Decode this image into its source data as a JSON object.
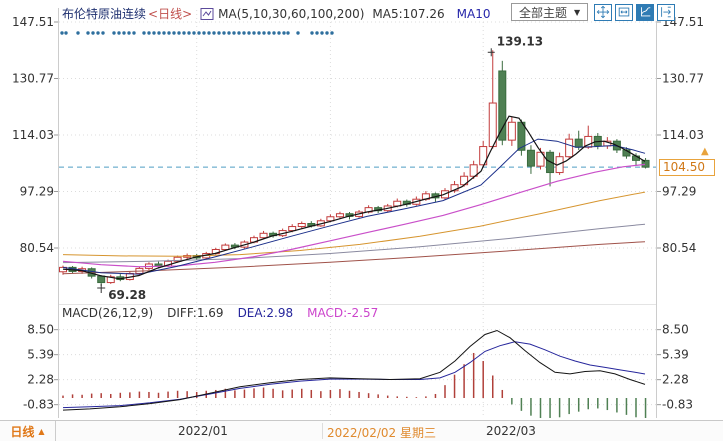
{
  "header": {
    "symbol": "布伦特原油连续",
    "period_tag": "<日线>",
    "indicator_label": "MA(5,10,30,60,100,200)",
    "ma5_label": "MA5:107.26",
    "ma10_label": "MA10",
    "theme_dropdown": "全部主题",
    "dropdown_arrow": "▼"
  },
  "toolbar": {
    "icons": [
      "crosshair-move-icon",
      "region-zoom-icon",
      "axis-scale-icon",
      "pan-right-icon"
    ],
    "active_icon": "axis-scale-icon"
  },
  "macd": {
    "label": "MACD(26,12,9)",
    "diff_label": "DIFF:1.69",
    "dea_label": "DEA:2.98",
    "macd_label": "MACD:-2.57"
  },
  "price_tags": {
    "high": "139.13",
    "low": "69.28",
    "last": "104.50",
    "arrow": "▲"
  },
  "axes": {
    "main_ticks": [
      "147.51",
      "130.77",
      "114.03",
      "97.29",
      "80.54"
    ],
    "macd_ticks": [
      "8.50",
      "5.39",
      "2.28",
      "-0.83"
    ]
  },
  "bottom_bar": {
    "period": "日线",
    "arrow": "▲",
    "dates": [
      "2022/01",
      "2022/02/02 星期三",
      "2022/03"
    ]
  },
  "colors": {
    "up": "#c23b3b",
    "down_fill": "#4f8053",
    "down_stroke": "#3a6b3e",
    "dashed_line": "#4f9ec4",
    "dot": "#2e6f9e",
    "grid": "#dcdcdc",
    "border": "#cccccc",
    "axis_text": "#333333",
    "toolbar_blue": "#2e7bb4",
    "high_label": "#c23b3b",
    "low_label": "#3c8c40",
    "tag_border": "#e8a33d",
    "tag_text": "#d07818",
    "diff_line": "#141414",
    "dea_line": "#26269c",
    "bar_pos": "#b0403a",
    "bar_neg": "#4f8053"
  },
  "chart_data": {
    "type": "candlestick+macd",
    "title": "布伦特原油连续 日线",
    "main": {
      "ylim": [
        63,
        152
      ],
      "yticks": [
        147.51,
        130.77,
        114.03,
        97.29,
        80.54
      ],
      "last_price": 104.5,
      "high_label": {
        "value": 139.13,
        "i": 45
      },
      "low_label": {
        "value": 69.28,
        "i": 4
      },
      "x_gridline_indices": [
        14,
        28,
        44
      ],
      "candles": [
        [
          73.5,
          75.3,
          72.6,
          74.8
        ],
        [
          74.8,
          75.2,
          73.0,
          73.6
        ],
        [
          73.6,
          75.0,
          72.9,
          74.4
        ],
        [
          74.4,
          74.8,
          71.5,
          72.2
        ],
        [
          72.2,
          72.5,
          69.28,
          70.3
        ],
        [
          70.3,
          72.6,
          69.9,
          72.0
        ],
        [
          72.0,
          72.8,
          70.7,
          71.2
        ],
        [
          71.2,
          73.5,
          70.9,
          73.0
        ],
        [
          73.0,
          75.0,
          72.6,
          74.5
        ],
        [
          74.5,
          76.3,
          74.0,
          75.8
        ],
        [
          75.8,
          76.5,
          74.7,
          75.2
        ],
        [
          75.2,
          77.1,
          74.9,
          76.6
        ],
        [
          76.6,
          78.3,
          76.2,
          77.8
        ],
        [
          77.8,
          78.9,
          77.2,
          78.3
        ],
        [
          78.3,
          78.8,
          77.0,
          77.6
        ],
        [
          77.6,
          79.4,
          77.2,
          78.9
        ],
        [
          78.9,
          80.6,
          78.5,
          80.1
        ],
        [
          80.1,
          81.9,
          79.8,
          81.4
        ],
        [
          81.4,
          82.0,
          80.2,
          80.8
        ],
        [
          80.8,
          82.8,
          80.4,
          82.3
        ],
        [
          82.3,
          84.2,
          81.9,
          83.6
        ],
        [
          83.6,
          85.6,
          83.2,
          84.9
        ],
        [
          84.9,
          85.4,
          83.6,
          84.2
        ],
        [
          84.2,
          86.3,
          83.8,
          85.7
        ],
        [
          85.7,
          87.6,
          85.2,
          86.9
        ],
        [
          86.9,
          88.4,
          86.4,
          87.8
        ],
        [
          87.8,
          88.5,
          86.6,
          87.1
        ],
        [
          87.1,
          89.2,
          86.8,
          88.6
        ],
        [
          88.6,
          90.5,
          88.2,
          89.8
        ],
        [
          89.8,
          91.3,
          89.3,
          90.7
        ],
        [
          90.7,
          91.2,
          89.0,
          89.9
        ],
        [
          89.9,
          91.8,
          89.5,
          91.2
        ],
        [
          91.2,
          93.2,
          90.8,
          92.5
        ],
        [
          92.5,
          93.0,
          90.9,
          91.6
        ],
        [
          91.6,
          93.6,
          91.1,
          93.0
        ],
        [
          93.0,
          95.2,
          92.6,
          94.4
        ],
        [
          94.4,
          94.9,
          92.8,
          93.5
        ],
        [
          93.5,
          95.8,
          93.1,
          95.0
        ],
        [
          95.0,
          97.4,
          94.5,
          96.6
        ],
        [
          96.6,
          97.0,
          94.2,
          95.4
        ],
        [
          95.4,
          98.3,
          94.9,
          97.5
        ],
        [
          97.5,
          100.4,
          96.9,
          99.3
        ],
        [
          99.3,
          103.0,
          98.7,
          101.8
        ],
        [
          101.8,
          106.4,
          101.0,
          105.2
        ],
        [
          105.2,
          112.3,
          104.4,
          110.6
        ],
        [
          110.6,
          139.13,
          110.0,
          123.5
        ],
        [
          133.0,
          136.0,
          111.0,
          112.5
        ],
        [
          112.5,
          119.5,
          110.8,
          117.8
        ],
        [
          117.8,
          118.6,
          107.9,
          109.5
        ],
        [
          109.5,
          111.0,
          102.5,
          104.8
        ],
        [
          104.8,
          110.2,
          103.8,
          108.9
        ],
        [
          108.9,
          109.6,
          98.8,
          102.9
        ],
        [
          102.9,
          108.8,
          102.2,
          107.6
        ],
        [
          107.6,
          114.4,
          107.0,
          112.8
        ],
        [
          112.8,
          115.3,
          109.6,
          110.4
        ],
        [
          110.4,
          116.8,
          109.9,
          113.6
        ],
        [
          113.6,
          114.6,
          109.8,
          110.8
        ],
        [
          110.8,
          113.4,
          109.9,
          112.2
        ],
        [
          112.2,
          112.8,
          108.7,
          109.6
        ],
        [
          109.6,
          110.4,
          107.0,
          107.8
        ],
        [
          107.8,
          108.6,
          104.9,
          106.5
        ],
        [
          106.5,
          107.2,
          104.1,
          104.5
        ]
      ],
      "ma_lines": [
        {
          "name": "MA200",
          "color": "#a0524a",
          "width": 1,
          "points": [
            [
              63,
              72.9
            ],
            [
              150,
              73.8
            ],
            [
              240,
              74.9
            ],
            [
              330,
              76.3
            ],
            [
              420,
              77.9
            ],
            [
              510,
              79.7
            ],
            [
              600,
              81.6
            ],
            [
              645,
              82.4
            ]
          ]
        },
        {
          "name": "MA100",
          "color": "#8a8aa0",
          "width": 1,
          "points": [
            [
              63,
              76.2
            ],
            [
              150,
              76.6
            ],
            [
              240,
              77.4
            ],
            [
              330,
              78.9
            ],
            [
              420,
              80.9
            ],
            [
              510,
              83.4
            ],
            [
              600,
              86.3
            ],
            [
              645,
              87.6
            ]
          ]
        },
        {
          "name": "MA60",
          "color": "#d6952f",
          "width": 1,
          "points": [
            [
              63,
              78.6
            ],
            [
              120,
              78.2
            ],
            [
              180,
              78.1
            ],
            [
              240,
              78.6
            ],
            [
              300,
              79.8
            ],
            [
              360,
              81.6
            ],
            [
              420,
              84.0
            ],
            [
              480,
              87.0
            ],
            [
              540,
              90.7
            ],
            [
              600,
              94.6
            ],
            [
              645,
              97.1
            ]
          ]
        },
        {
          "name": "MA30",
          "color": "#c94fc9",
          "width": 1.2,
          "points": [
            [
              63,
              76.6
            ],
            [
              101,
              75.6
            ],
            [
              139,
              75.0
            ],
            [
              177,
              75.2
            ],
            [
              215,
              76.3
            ],
            [
              253,
              77.9
            ],
            [
              291,
              80.1
            ],
            [
              329,
              82.6
            ],
            [
              367,
              85.1
            ],
            [
              405,
              87.6
            ],
            [
              443,
              90.2
            ],
            [
              481,
              93.4
            ],
            [
              519,
              96.9
            ],
            [
              557,
              100.3
            ],
            [
              595,
              103.0
            ],
            [
              623,
              104.6
            ],
            [
              645,
              105.3
            ]
          ]
        },
        {
          "name": "MA10",
          "color": "#1b2f8a",
          "width": 1,
          "points": [
            [
              63,
              74.8
            ],
            [
              101,
              73.2
            ],
            [
              139,
              72.8
            ],
            [
              177,
              75.1
            ],
            [
              215,
              77.9
            ],
            [
              253,
              80.9
            ],
            [
              291,
              84.0
            ],
            [
              329,
              87.0
            ],
            [
              367,
              89.9
            ],
            [
              405,
              92.2
            ],
            [
              443,
              94.6
            ],
            [
              481,
              99.2
            ],
            [
              500,
              104.5
            ],
            [
              519,
              110.0
            ],
            [
              538,
              112.8
            ],
            [
              557,
              112.2
            ],
            [
              576,
              110.4
            ],
            [
              595,
              110.6
            ],
            [
              614,
              110.9
            ],
            [
              633,
              109.6
            ],
            [
              645,
              108.6
            ]
          ]
        },
        {
          "name": "MA5",
          "color": "#141414",
          "width": 1.2,
          "points": [
            [
              63,
              74.3
            ],
            [
              82,
              73.8
            ],
            [
              101,
              72.3
            ],
            [
              120,
              71.4
            ],
            [
              139,
              72.4
            ],
            [
              158,
              74.6
            ],
            [
              177,
              76.3
            ],
            [
              196,
              77.9
            ],
            [
              215,
              78.9
            ],
            [
              234,
              80.6
            ],
            [
              253,
              82.2
            ],
            [
              272,
              84.1
            ],
            [
              291,
              85.4
            ],
            [
              310,
              86.9
            ],
            [
              329,
              88.3
            ],
            [
              348,
              89.9
            ],
            [
              367,
              91.2
            ],
            [
              386,
              92.2
            ],
            [
              405,
              93.4
            ],
            [
              424,
              94.9
            ],
            [
              443,
              96.3
            ],
            [
              462,
              98.7
            ],
            [
              481,
              103.3
            ],
            [
              490,
              108.9
            ],
            [
              500,
              114.8
            ],
            [
              509,
              119.6
            ],
            [
              519,
              119.0
            ],
            [
              528,
              115.1
            ],
            [
              538,
              110.3
            ],
            [
              547,
              106.6
            ],
            [
              557,
              105.1
            ],
            [
              566,
              106.3
            ],
            [
              576,
              108.4
            ],
            [
              585,
              110.7
            ],
            [
              595,
              112.0
            ],
            [
              604,
              112.2
            ],
            [
              614,
              111.3
            ],
            [
              623,
              110.0
            ],
            [
              633,
              108.3
            ],
            [
              645,
              106.2
            ]
          ]
        }
      ],
      "event_dot_x": [
        62,
        66,
        78,
        88,
        93,
        98,
        103,
        114,
        119,
        124,
        129,
        134,
        144,
        149,
        154,
        159,
        164,
        169,
        174,
        179,
        184,
        189,
        194,
        199,
        204,
        209,
        214,
        219,
        224,
        229,
        234,
        239,
        244,
        249,
        254,
        259,
        264,
        269,
        274,
        279,
        284,
        288,
        298,
        312,
        317,
        322,
        327,
        332
      ]
    },
    "macd": {
      "params": [
        26,
        12,
        9
      ],
      "yticks": [
        8.5,
        5.39,
        2.28,
        -0.83
      ],
      "values": {
        "diff": 1.69,
        "dea": 2.98,
        "macd": -2.57
      },
      "bars": [
        0.3,
        0.45,
        0.4,
        0.55,
        0.6,
        0.5,
        0.65,
        0.7,
        0.8,
        0.75,
        0.65,
        0.8,
        0.9,
        0.85,
        0.75,
        0.9,
        1.0,
        1.15,
        0.95,
        1.05,
        1.2,
        1.3,
        1.15,
        0.95,
        1.05,
        1.15,
        1.0,
        0.85,
        1.0,
        1.1,
        0.9,
        0.75,
        0.6,
        0.45,
        0.3,
        0.2,
        0.15,
        0.1,
        0.2,
        0.5,
        1.6,
        2.9,
        4.2,
        5.6,
        4.6,
        2.8,
        1.0,
        -0.8,
        -1.6,
        -2.2,
        -2.5,
        -2.7,
        -2.4,
        -2.0,
        -1.7,
        -1.4,
        -1.3,
        -1.5,
        -1.8,
        -2.1,
        -2.4,
        -2.57
      ],
      "diff": [
        [
          63,
          -1.5
        ],
        [
          90,
          -1.35
        ],
        [
          120,
          -1.1
        ],
        [
          150,
          -0.7
        ],
        [
          180,
          -0.2
        ],
        [
          210,
          0.6
        ],
        [
          240,
          1.4
        ],
        [
          270,
          1.9
        ],
        [
          300,
          2.3
        ],
        [
          330,
          2.5
        ],
        [
          360,
          2.4
        ],
        [
          390,
          2.3
        ],
        [
          420,
          2.4
        ],
        [
          440,
          3.2
        ],
        [
          455,
          4.6
        ],
        [
          470,
          6.4
        ],
        [
          485,
          7.9
        ],
        [
          497,
          8.4
        ],
        [
          510,
          7.5
        ],
        [
          525,
          5.9
        ],
        [
          540,
          4.4
        ],
        [
          555,
          3.2
        ],
        [
          570,
          3.0
        ],
        [
          585,
          3.3
        ],
        [
          600,
          3.4
        ],
        [
          615,
          3.0
        ],
        [
          630,
          2.3
        ],
        [
          645,
          1.69
        ]
      ],
      "dea": [
        [
          63,
          -1.2
        ],
        [
          90,
          -1.1
        ],
        [
          120,
          -0.95
        ],
        [
          150,
          -0.6
        ],
        [
          180,
          -0.15
        ],
        [
          210,
          0.5
        ],
        [
          240,
          1.2
        ],
        [
          270,
          1.7
        ],
        [
          300,
          2.1
        ],
        [
          330,
          2.35
        ],
        [
          360,
          2.35
        ],
        [
          390,
          2.3
        ],
        [
          420,
          2.3
        ],
        [
          440,
          2.5
        ],
        [
          455,
          3.2
        ],
        [
          470,
          4.4
        ],
        [
          485,
          5.8
        ],
        [
          500,
          6.5
        ],
        [
          515,
          7.0
        ],
        [
          530,
          6.7
        ],
        [
          545,
          6.0
        ],
        [
          560,
          5.2
        ],
        [
          575,
          4.6
        ],
        [
          590,
          4.1
        ],
        [
          605,
          3.8
        ],
        [
          620,
          3.5
        ],
        [
          635,
          3.2
        ],
        [
          645,
          2.98
        ]
      ]
    }
  }
}
